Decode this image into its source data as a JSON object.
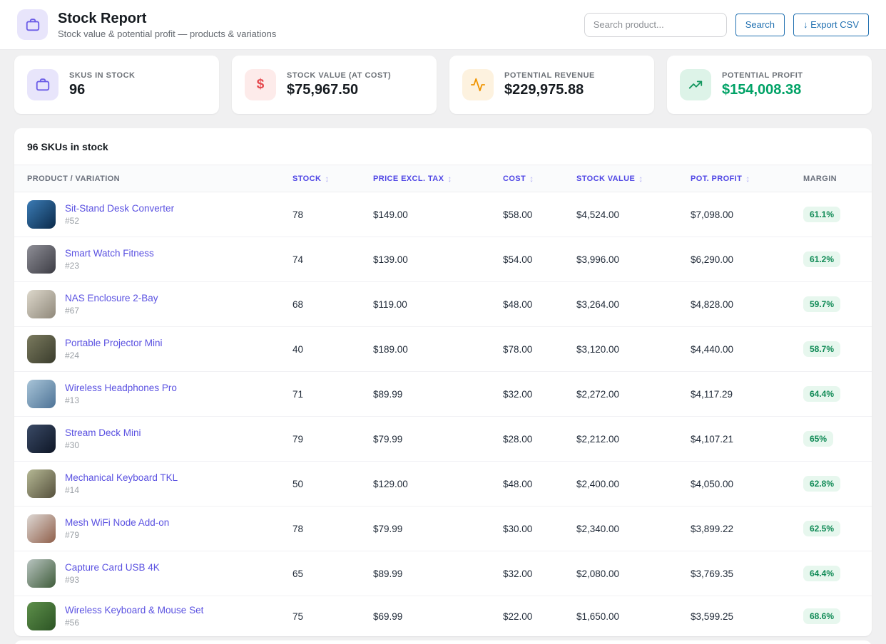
{
  "header": {
    "title": "Stock Report",
    "subtitle": "Stock value & potential profit — products & variations",
    "search_placeholder": "Search product...",
    "search_button": "Search",
    "export_button": "↓ Export CSV",
    "icon": "briefcase-icon",
    "accent_color": "#6b5ce7"
  },
  "stats": [
    {
      "label": "SKUS IN STOCK",
      "value": "96",
      "icon": "briefcase-icon",
      "accent": "#6b5ce7",
      "accent_bg": "#e8e5fb"
    },
    {
      "label": "STOCK VALUE (AT COST)",
      "value": "$75,967.50",
      "icon": "dollar-icon",
      "accent": "#e5484d",
      "accent_bg": "#fdebea"
    },
    {
      "label": "POTENTIAL REVENUE",
      "value": "$229,975.88",
      "icon": "activity-icon",
      "accent": "#ef9400",
      "accent_bg": "#fdf2df"
    },
    {
      "label": "POTENTIAL PROFIT",
      "value": "$154,008.38",
      "icon": "trending-up-icon",
      "accent": "#13975f",
      "accent_bg": "#ddf3e8",
      "value_color": "#00a266"
    }
  ],
  "table": {
    "panel_title": "96 SKUs in stock",
    "sort_icon": "↕",
    "link_color": "#5a51e1",
    "sortable_header_color": "#4f46e5",
    "margin_badge_bg": "#e7f7ee",
    "margin_badge_color": "#0f8a55",
    "columns": [
      {
        "label": "PRODUCT / VARIATION",
        "sortable": false
      },
      {
        "label": "STOCK",
        "sortable": true
      },
      {
        "label": "PRICE EXCL. TAX",
        "sortable": true
      },
      {
        "label": "COST",
        "sortable": true
      },
      {
        "label": "STOCK VALUE",
        "sortable": true
      },
      {
        "label": "POT. PROFIT",
        "sortable": true
      },
      {
        "label": "MARGIN",
        "sortable": false
      }
    ],
    "rows": [
      {
        "name": "Sit-Stand Desk Converter",
        "id": "#52",
        "stock": "78",
        "price": "$149.00",
        "cost": "$58.00",
        "stock_value": "$4,524.00",
        "pot_profit": "$7,098.00",
        "margin": "61.1%",
        "thumb": [
          "#3b7bb5",
          "#0a2a4a"
        ]
      },
      {
        "name": "Smart Watch Fitness",
        "id": "#23",
        "stock": "74",
        "price": "$139.00",
        "cost": "$54.00",
        "stock_value": "$3,996.00",
        "pot_profit": "$6,290.00",
        "margin": "61.2%",
        "thumb": [
          "#8e8e96",
          "#3c3c44"
        ]
      },
      {
        "name": "NAS Enclosure 2-Bay",
        "id": "#67",
        "stock": "68",
        "price": "$119.00",
        "cost": "$48.00",
        "stock_value": "$3,264.00",
        "pot_profit": "$4,828.00",
        "margin": "59.7%",
        "thumb": [
          "#ddd8cb",
          "#8f887a"
        ]
      },
      {
        "name": "Portable Projector Mini",
        "id": "#24",
        "stock": "40",
        "price": "$189.00",
        "cost": "$78.00",
        "stock_value": "$3,120.00",
        "pot_profit": "$4,440.00",
        "margin": "58.7%",
        "thumb": [
          "#7a7a5e",
          "#3a3c2c"
        ]
      },
      {
        "name": "Wireless Headphones Pro",
        "id": "#13",
        "stock": "71",
        "price": "$89.99",
        "cost": "$32.00",
        "stock_value": "$2,272.00",
        "pot_profit": "$4,117.29",
        "margin": "64.4%",
        "thumb": [
          "#a8c4d8",
          "#4d7396"
        ]
      },
      {
        "name": "Stream Deck Mini",
        "id": "#30",
        "stock": "79",
        "price": "$79.99",
        "cost": "$28.00",
        "stock_value": "$2,212.00",
        "pot_profit": "$4,107.21",
        "margin": "65%",
        "thumb": [
          "#3a4a66",
          "#0e1626"
        ]
      },
      {
        "name": "Mechanical Keyboard TKL",
        "id": "#14",
        "stock": "50",
        "price": "$129.00",
        "cost": "$48.00",
        "stock_value": "$2,400.00",
        "pot_profit": "$4,050.00",
        "margin": "62.8%",
        "thumb": [
          "#b5b894",
          "#55503c"
        ]
      },
      {
        "name": "Mesh WiFi Node Add-on",
        "id": "#79",
        "stock": "78",
        "price": "$79.99",
        "cost": "$30.00",
        "stock_value": "$2,340.00",
        "pot_profit": "$3,899.22",
        "margin": "62.5%",
        "thumb": [
          "#ded8d4",
          "#8f5f4a"
        ]
      },
      {
        "name": "Capture Card USB 4K",
        "id": "#93",
        "stock": "65",
        "price": "$89.99",
        "cost": "$32.00",
        "stock_value": "$2,080.00",
        "pot_profit": "$3,769.35",
        "margin": "64.4%",
        "thumb": [
          "#b8c4c0",
          "#3f5c3a"
        ]
      },
      {
        "name": "Wireless Keyboard & Mouse Set",
        "id": "#56",
        "stock": "75",
        "price": "$69.99",
        "cost": "$22.00",
        "stock_value": "$1,650.00",
        "pot_profit": "$3,599.25",
        "margin": "68.6%",
        "thumb": [
          "#5d8f4a",
          "#2c5424"
        ]
      }
    ]
  }
}
